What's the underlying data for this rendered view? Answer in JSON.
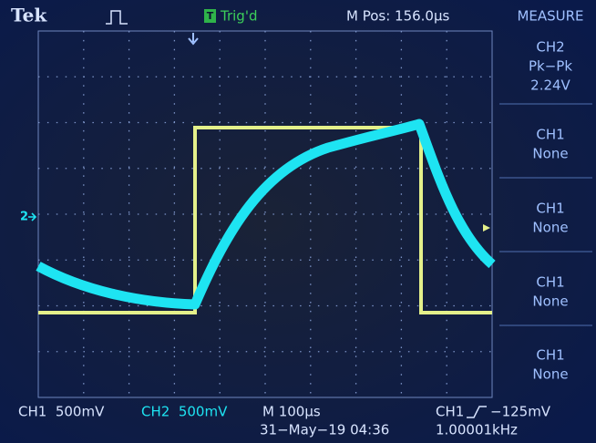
{
  "header": {
    "brand": "Tek",
    "trigger_status": "Trig'd",
    "position": "M Pos: 156.0µs"
  },
  "menu": {
    "title": "MEASURE",
    "items": [
      {
        "channel": "CH2",
        "measure": "Pk−Pk",
        "value": "2.24V"
      },
      {
        "channel": "CH1",
        "measure": "None"
      },
      {
        "channel": "CH1",
        "measure": "None"
      },
      {
        "channel": "CH1",
        "measure": "None"
      },
      {
        "channel": "CH1",
        "measure": "None"
      }
    ]
  },
  "graticule": {
    "channel_marker": "2"
  },
  "footer": {
    "ch1_scale": "CH1  500mV",
    "ch2_scale": "CH2  500mV",
    "timebase": "M 100µs",
    "datetime": "31−May−19 04:36",
    "trigger_source": "CH1",
    "trigger_level": "−125mV",
    "frequency": "1.00001kHz"
  }
}
